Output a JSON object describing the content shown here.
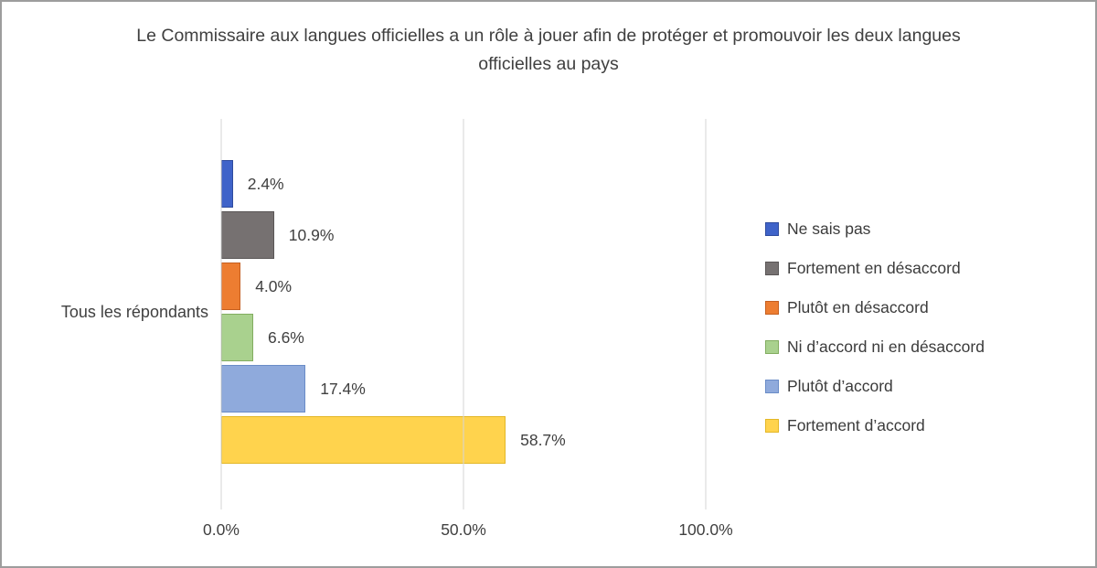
{
  "chart_data": {
    "type": "bar",
    "orientation": "horizontal",
    "title": "Le Commissaire aux langues officielles a un rôle à jouer afin de protéger et promouvoir les deux langues officielles au pays",
    "category": "Tous les répondants",
    "series": [
      {
        "name": "Ne sais pas",
        "value": 2.4,
        "label": "2.4%",
        "color": "#3f63c9",
        "border": "#2f4b9e"
      },
      {
        "name": "Fortement en désaccord",
        "value": 10.9,
        "label": "10.9%",
        "color": "#767171",
        "border": "#5a5656"
      },
      {
        "name": "Plutôt en désaccord",
        "value": 4.0,
        "label": "4.0%",
        "color": "#ed7d31",
        "border": "#c55f20"
      },
      {
        "name": "Ni d’accord ni en désaccord",
        "value": 6.6,
        "label": "6.6%",
        "color": "#a9d18e",
        "border": "#82ad60"
      },
      {
        "name": "Plutôt d’accord",
        "value": 17.4,
        "label": "17.4%",
        "color": "#8faadc",
        "border": "#6a8cc7"
      },
      {
        "name": "Fortement d’accord",
        "value": 58.7,
        "label": "58.7%",
        "color": "#ffd34d",
        "border": "#e3b727"
      }
    ],
    "x_ticks": [
      "0.0%",
      "50.0%",
      "100.0%"
    ],
    "xlim": [
      0,
      100
    ],
    "grid": true,
    "legend_position": "right",
    "colors": {
      "gridline": "#d6d6d6",
      "text": "#404040"
    }
  }
}
